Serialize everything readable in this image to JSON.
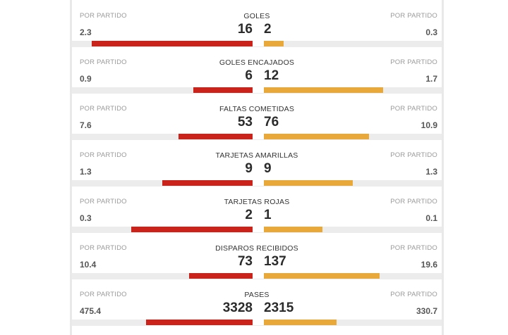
{
  "colors": {
    "home": "#c9231b",
    "away": "#e8a93a",
    "track": "#ececec"
  },
  "stats": [
    {
      "title": "GOLES",
      "per_label_left": "POR PARTIDO",
      "per_label_right": "POR PARTIDO",
      "home_value": "16",
      "away_value": "2",
      "home_avg": "2.3",
      "away_avg": "0.3",
      "home_fill": 0.89,
      "away_fill": 0.11
    },
    {
      "title": "GOLES ENCAJADOS",
      "per_label_left": "POR PARTIDO",
      "per_label_right": "POR PARTIDO",
      "home_value": "6",
      "away_value": "12",
      "home_avg": "0.9",
      "away_avg": "1.7",
      "home_fill": 0.33,
      "away_fill": 0.67
    },
    {
      "title": "FALTAS COMETIDAS",
      "per_label_left": "POR PARTIDO",
      "per_label_right": "POR PARTIDO",
      "home_value": "53",
      "away_value": "76",
      "home_avg": "7.6",
      "away_avg": "10.9",
      "home_fill": 0.41,
      "away_fill": 0.59
    },
    {
      "title": "TARJETAS AMARILLAS",
      "per_label_left": "POR PARTIDO",
      "per_label_right": "POR PARTIDO",
      "home_value": "9",
      "away_value": "9",
      "home_avg": "1.3",
      "away_avg": "1.3",
      "home_fill": 0.5,
      "away_fill": 0.5
    },
    {
      "title": "TARJETAS ROJAS",
      "per_label_left": "POR PARTIDO",
      "per_label_right": "POR PARTIDO",
      "home_value": "2",
      "away_value": "1",
      "home_avg": "0.3",
      "away_avg": "0.1",
      "home_fill": 0.67,
      "away_fill": 0.33
    },
    {
      "title": "DISPAROS RECIBIDOS",
      "per_label_left": "POR PARTIDO",
      "per_label_right": "POR PARTIDO",
      "home_value": "73",
      "away_value": "137",
      "home_avg": "10.4",
      "away_avg": "19.6",
      "home_fill": 0.35,
      "away_fill": 0.65
    },
    {
      "title": "PASES",
      "per_label_left": "POR PARTIDO",
      "per_label_right": "POR PARTIDO",
      "home_value": "3328",
      "away_value": "2315",
      "home_avg": "475.4",
      "away_avg": "330.7",
      "home_fill": 0.59,
      "away_fill": 0.41
    }
  ]
}
